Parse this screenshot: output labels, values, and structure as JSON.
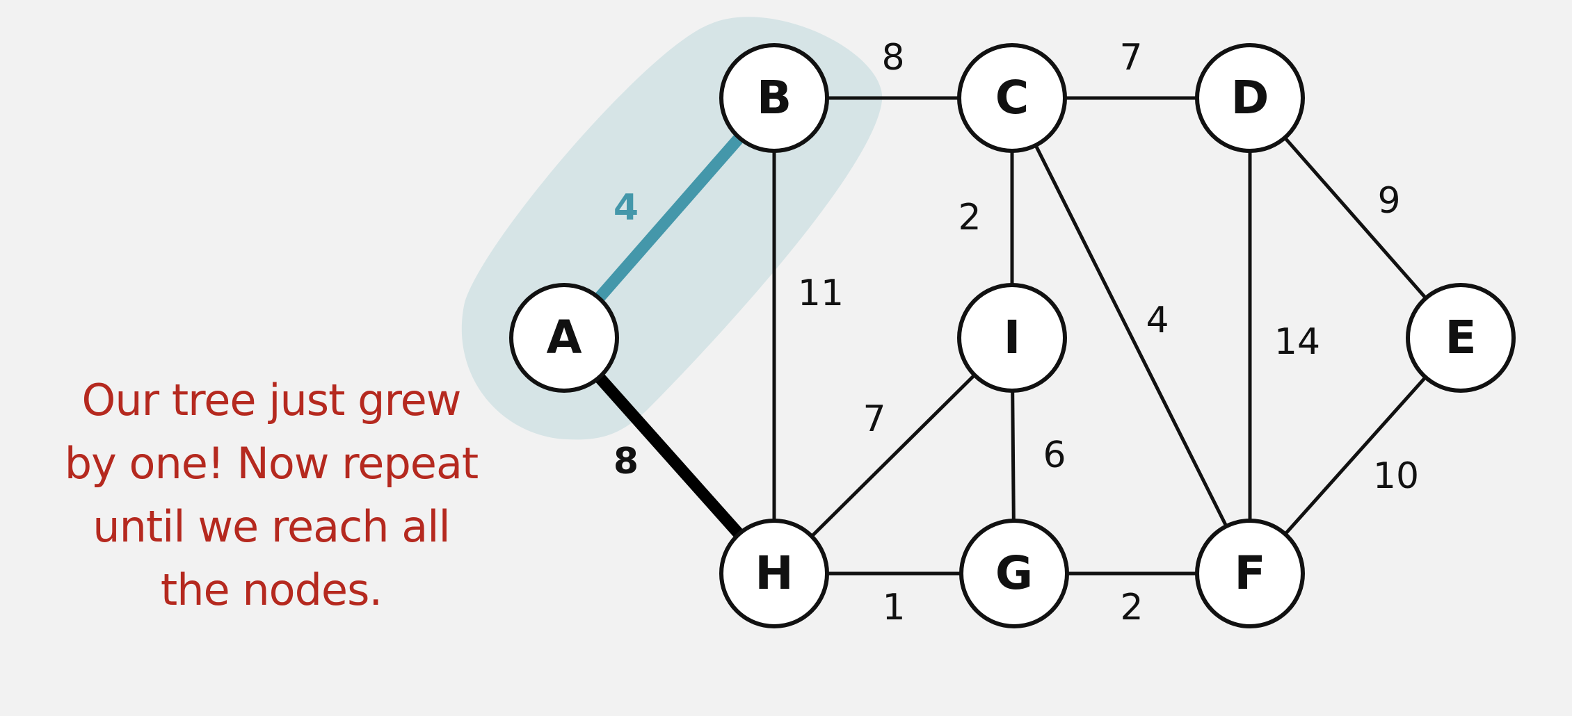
{
  "caption": "Our tree just grew\nby one! Now repeat\nuntil we reach all\nthe nodes.",
  "colors": {
    "background": "#f2f2f2",
    "caption": "#b5291f",
    "highlight_edge": "#4497aa",
    "highlight_region": "#d6e4e6",
    "tree_edge": "#000000",
    "edge": "#111111"
  },
  "nodes": [
    {
      "id": "A",
      "label": "A"
    },
    {
      "id": "B",
      "label": "B"
    },
    {
      "id": "C",
      "label": "C"
    },
    {
      "id": "D",
      "label": "D"
    },
    {
      "id": "E",
      "label": "E"
    },
    {
      "id": "F",
      "label": "F"
    },
    {
      "id": "G",
      "label": "G"
    },
    {
      "id": "H",
      "label": "H"
    },
    {
      "id": "I",
      "label": "I"
    }
  ],
  "edges": [
    {
      "from": "A",
      "to": "B",
      "weight": "4",
      "state": "highlighted"
    },
    {
      "from": "A",
      "to": "H",
      "weight": "8",
      "state": "tree"
    },
    {
      "from": "B",
      "to": "C",
      "weight": "8",
      "state": "normal"
    },
    {
      "from": "B",
      "to": "H",
      "weight": "11",
      "state": "normal"
    },
    {
      "from": "C",
      "to": "D",
      "weight": "7",
      "state": "normal"
    },
    {
      "from": "C",
      "to": "I",
      "weight": "2",
      "state": "normal"
    },
    {
      "from": "C",
      "to": "F",
      "weight": "4",
      "state": "normal"
    },
    {
      "from": "D",
      "to": "E",
      "weight": "9",
      "state": "normal"
    },
    {
      "from": "D",
      "to": "F",
      "weight": "14",
      "state": "normal"
    },
    {
      "from": "E",
      "to": "F",
      "weight": "10",
      "state": "normal"
    },
    {
      "from": "H",
      "to": "I",
      "weight": "7",
      "state": "normal"
    },
    {
      "from": "I",
      "to": "G",
      "weight": "6",
      "state": "normal"
    },
    {
      "from": "H",
      "to": "G",
      "weight": "1",
      "state": "normal"
    },
    {
      "from": "G",
      "to": "F",
      "weight": "2",
      "state": "normal"
    }
  ]
}
